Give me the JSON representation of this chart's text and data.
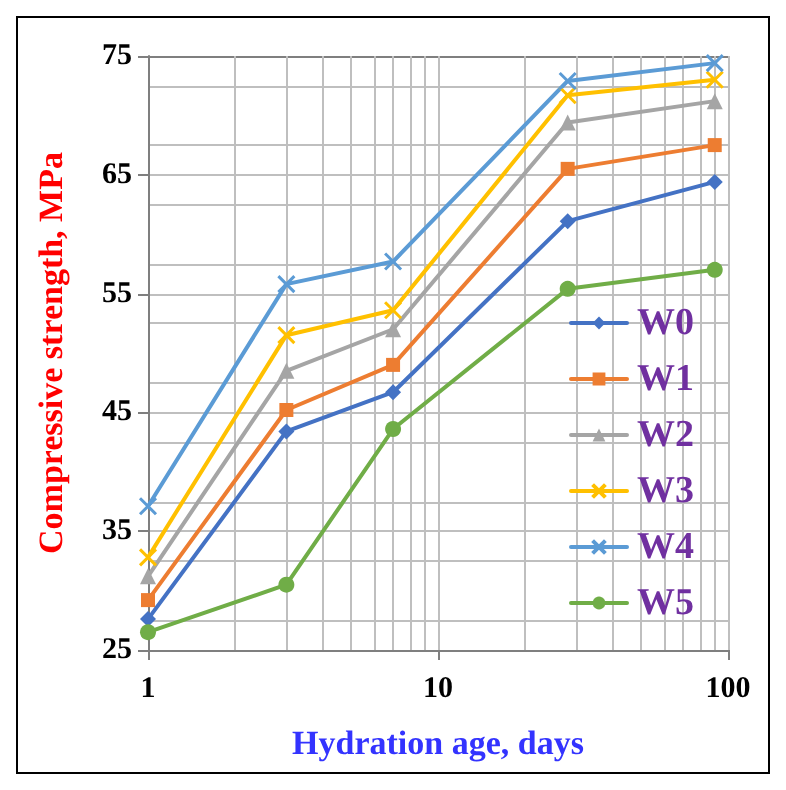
{
  "chart_data": {
    "type": "line",
    "xlabel": "Hydration age, days",
    "ylabel": "Compressive strength, MPa",
    "log": "x",
    "x": [
      1,
      3,
      7,
      28,
      90
    ],
    "xlim": [
      1,
      100
    ],
    "xticks": [
      1,
      10,
      100
    ],
    "ylim": [
      25,
      75
    ],
    "yticks": [
      25,
      35,
      45,
      55,
      65,
      75
    ],
    "grid": true,
    "legend": "bottom right",
    "series": [
      {
        "name": "W0",
        "color": "#4472c4",
        "marker": "diamond",
        "values": [
          27.6,
          43.4,
          46.7,
          61.1,
          64.4
        ]
      },
      {
        "name": "W1",
        "color": "#ed7d31",
        "marker": "square",
        "values": [
          29.2,
          45.2,
          49.0,
          65.5,
          67.5
        ]
      },
      {
        "name": "W2",
        "color": "#a5a5a5",
        "marker": "triangle",
        "values": [
          31.2,
          48.5,
          52.0,
          69.4,
          71.2
        ]
      },
      {
        "name": "W3",
        "color": "#ffc000",
        "marker": "cross",
        "values": [
          32.8,
          51.5,
          53.6,
          71.7,
          73.0
        ]
      },
      {
        "name": "W4",
        "color": "#5b9bd5",
        "marker": "cross",
        "values": [
          37.1,
          55.8,
          57.7,
          72.9,
          74.4
        ]
      },
      {
        "name": "W5",
        "color": "#70ad47",
        "marker": "circle",
        "values": [
          26.5,
          30.5,
          43.6,
          55.4,
          57.0
        ]
      }
    ]
  }
}
